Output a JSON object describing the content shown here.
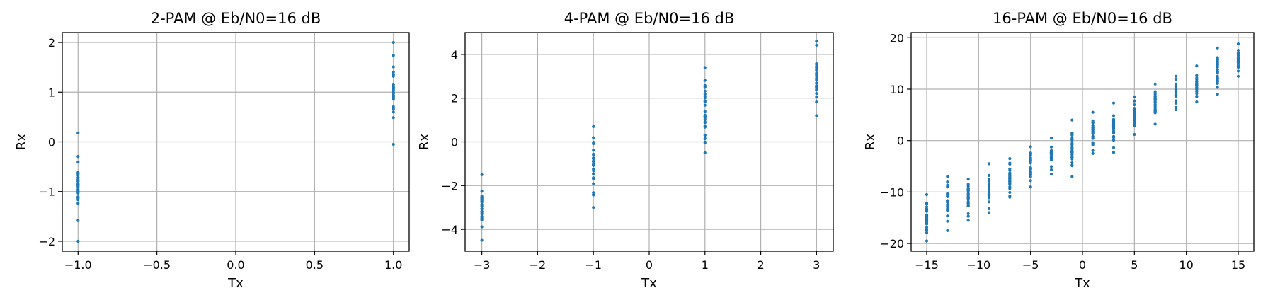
{
  "chart_data": [
    {
      "type": "scatter",
      "title": "2-PAM @ Eb/N0=16 dB",
      "xlabel": "Tx",
      "ylabel": "Rx",
      "xlim": [
        -1.1,
        1.1
      ],
      "ylim": [
        -2.2,
        2.2
      ],
      "xticks": [
        -1.0,
        -0.5,
        0.0,
        0.5,
        1.0
      ],
      "xtick_labels": [
        "−1.0",
        "−0.5",
        "0.0",
        "0.5",
        "1.0"
      ],
      "yticks": [
        -2,
        -1,
        0,
        1,
        2
      ],
      "ytick_labels": [
        "−2",
        "−1",
        "0",
        "1",
        "2"
      ],
      "grid": true,
      "marker_color": "#1f77b4",
      "series": [
        {
          "x": -1,
          "y_range": [
            -2.0,
            0.18
          ]
        },
        {
          "x": 1,
          "y_range": [
            -0.05,
            2.0
          ]
        }
      ]
    },
    {
      "type": "scatter",
      "title": "4-PAM @ Eb/N0=16 dB",
      "xlabel": "Tx",
      "ylabel": "Rx",
      "xlim": [
        -3.3,
        3.3
      ],
      "ylim": [
        -5.0,
        5.0
      ],
      "xticks": [
        -3,
        -2,
        -1,
        0,
        1,
        2,
        3
      ],
      "xtick_labels": [
        "−3",
        "−2",
        "−1",
        "0",
        "1",
        "2",
        "3"
      ],
      "yticks": [
        -4,
        -2,
        0,
        2,
        4
      ],
      "ytick_labels": [
        "−4",
        "−2",
        "0",
        "2",
        "4"
      ],
      "grid": true,
      "marker_color": "#1f77b4",
      "series": [
        {
          "x": -3,
          "y_range": [
            -4.5,
            -1.5
          ]
        },
        {
          "x": -1,
          "y_range": [
            -3.0,
            0.7
          ]
        },
        {
          "x": 1,
          "y_range": [
            -0.5,
            3.4
          ]
        },
        {
          "x": 3,
          "y_range": [
            1.2,
            4.6
          ]
        }
      ]
    },
    {
      "type": "scatter",
      "title": "16-PAM @ Eb/N0=16 dB",
      "xlabel": "Tx",
      "ylabel": "Rx",
      "xlim": [
        -16.5,
        16.5
      ],
      "ylim": [
        -21.5,
        21.0
      ],
      "xticks": [
        -15,
        -10,
        -5,
        0,
        5,
        10,
        15
      ],
      "xtick_labels": [
        "−15",
        "−10",
        "−5",
        "0",
        "5",
        "10",
        "15"
      ],
      "yticks": [
        -20,
        -10,
        0,
        10,
        20
      ],
      "ytick_labels": [
        "−20",
        "−10",
        "0",
        "10",
        "20"
      ],
      "grid": true,
      "marker_color": "#1f77b4",
      "series": [
        {
          "x": -15,
          "y_range": [
            -19.5,
            -10.5
          ]
        },
        {
          "x": -13,
          "y_range": [
            -17.5,
            -7.0
          ]
        },
        {
          "x": -11,
          "y_range": [
            -15.5,
            -7.5
          ]
        },
        {
          "x": -9,
          "y_range": [
            -14.0,
            -4.5
          ]
        },
        {
          "x": -7,
          "y_range": [
            -11.0,
            -3.5
          ]
        },
        {
          "x": -5,
          "y_range": [
            -9.0,
            -1.2
          ]
        },
        {
          "x": -3,
          "y_range": [
            -6.5,
            0.5
          ]
        },
        {
          "x": -1,
          "y_range": [
            -7.0,
            4.0
          ]
        },
        {
          "x": 1,
          "y_range": [
            -2.5,
            5.5
          ]
        },
        {
          "x": 3,
          "y_range": [
            -2.3,
            7.3
          ]
        },
        {
          "x": 5,
          "y_range": [
            1.2,
            8.5
          ]
        },
        {
          "x": 7,
          "y_range": [
            3.2,
            11.0
          ]
        },
        {
          "x": 9,
          "y_range": [
            6.0,
            12.5
          ]
        },
        {
          "x": 11,
          "y_range": [
            7.5,
            14.5
          ]
        },
        {
          "x": 13,
          "y_range": [
            9.0,
            18.0
          ]
        },
        {
          "x": 15,
          "y_range": [
            12.5,
            18.8
          ]
        }
      ]
    }
  ]
}
